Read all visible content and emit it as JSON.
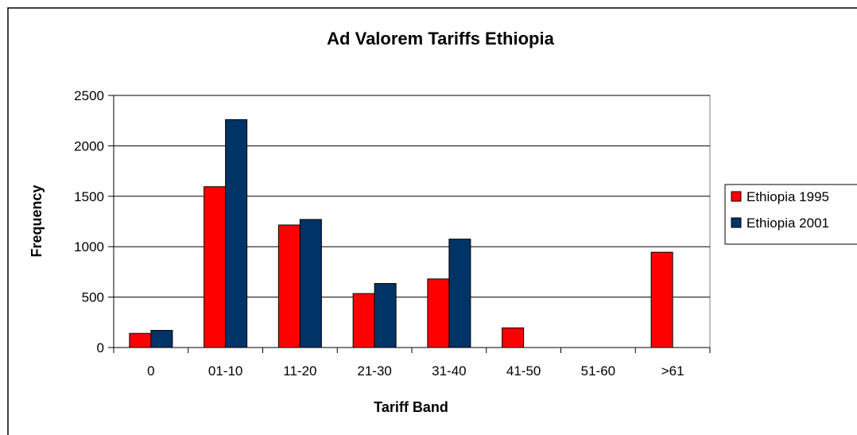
{
  "chart_data": {
    "type": "bar",
    "title": "Ad Valorem Tariffs Ethiopia",
    "xlabel": "Tariff Band",
    "ylabel": "Frequency",
    "categories": [
      "0",
      "01-10",
      "11-20",
      "21-30",
      "31-40",
      "41-50",
      "51-60",
      ">61"
    ],
    "series": [
      {
        "name": "Ethiopia 1995",
        "color": "#ff0000",
        "values": [
          140,
          1595,
          1215,
          535,
          680,
          195,
          0,
          945
        ]
      },
      {
        "name": "Ethiopia 2001",
        "color": "#003366",
        "values": [
          170,
          2260,
          1270,
          635,
          1075,
          0,
          0,
          0
        ]
      }
    ],
    "ylim": [
      0,
      2500
    ],
    "yticks": [
      0,
      500,
      1000,
      1500,
      2000,
      2500
    ],
    "grid": true,
    "legend": "right"
  }
}
